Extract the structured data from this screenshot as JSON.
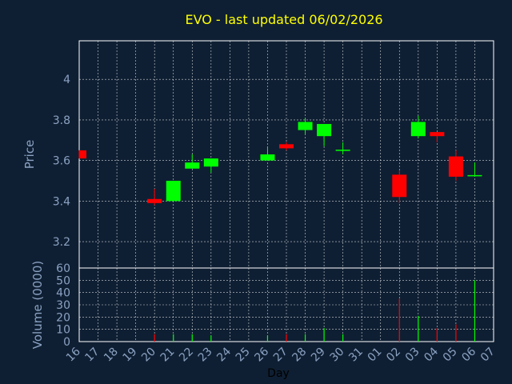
{
  "chart_data": {
    "type": "candlestick",
    "title": "EVO - last updated 06/02/2026",
    "xlabel": "Day",
    "price_panel": {
      "ylabel": "Price",
      "ylim": [
        3.07,
        4.19
      ],
      "yticks": [
        "3.2",
        "3.4",
        "3.6",
        "3.8",
        "4"
      ]
    },
    "volume_panel": {
      "ylabel": "Volume (0000)",
      "ylim": [
        0,
        60
      ],
      "yticks": [
        "0",
        "10",
        "20",
        "30",
        "40",
        "50",
        "60"
      ]
    },
    "x_ticks": [
      "16",
      "17",
      "18",
      "19",
      "20",
      "21",
      "22",
      "23",
      "24",
      "25",
      "26",
      "27",
      "28",
      "29",
      "30",
      "31",
      "01",
      "02",
      "03",
      "04",
      "05",
      "06",
      "07"
    ],
    "candles": [
      {
        "day": "16",
        "open": 3.65,
        "close": 3.61,
        "high": 3.65,
        "low": 3.61,
        "volume": 0
      },
      {
        "day": "20",
        "open": 3.41,
        "close": 3.39,
        "high": 3.46,
        "low": 3.38,
        "volume": 6
      },
      {
        "day": "21",
        "open": 3.4,
        "close": 3.5,
        "high": 3.5,
        "low": 3.4,
        "volume": 6
      },
      {
        "day": "22",
        "open": 3.56,
        "close": 3.59,
        "high": 3.63,
        "low": 3.56,
        "volume": 6
      },
      {
        "day": "23",
        "open": 3.57,
        "close": 3.61,
        "high": 3.61,
        "low": 3.54,
        "volume": 5
      },
      {
        "day": "26",
        "open": 3.6,
        "close": 3.63,
        "high": 3.67,
        "low": 3.6,
        "volume": 5
      },
      {
        "day": "27",
        "open": 3.68,
        "close": 3.66,
        "high": 3.69,
        "low": 3.65,
        "volume": 6
      },
      {
        "day": "28",
        "open": 3.75,
        "close": 3.79,
        "high": 3.81,
        "low": 3.73,
        "volume": 6
      },
      {
        "day": "29",
        "open": 3.72,
        "close": 3.78,
        "high": 3.78,
        "low": 3.67,
        "volume": 11
      },
      {
        "day": "30",
        "open": 3.645,
        "close": 3.65,
        "high": 3.69,
        "low": 3.63,
        "volume": 6
      },
      {
        "day": "02",
        "open": 3.53,
        "close": 3.42,
        "high": 3.55,
        "low": 3.39,
        "volume": 35
      },
      {
        "day": "03",
        "open": 3.72,
        "close": 3.79,
        "high": 3.82,
        "low": 3.71,
        "volume": 21
      },
      {
        "day": "04",
        "open": 3.74,
        "close": 3.72,
        "high": 3.74,
        "low": 3.69,
        "volume": 11
      },
      {
        "day": "05",
        "open": 3.62,
        "close": 3.52,
        "high": 3.65,
        "low": 3.5,
        "volume": 14
      },
      {
        "day": "06",
        "open": 3.52,
        "close": 3.525,
        "high": 3.59,
        "low": 3.52,
        "volume": 50
      }
    ],
    "colors": {
      "background": "#0f1f33",
      "up": "#00ff00",
      "down": "#ff0000",
      "axis_text": "#8aa2c2",
      "title": "#ffff00",
      "grid": "#ffffff"
    },
    "grid": true
  }
}
